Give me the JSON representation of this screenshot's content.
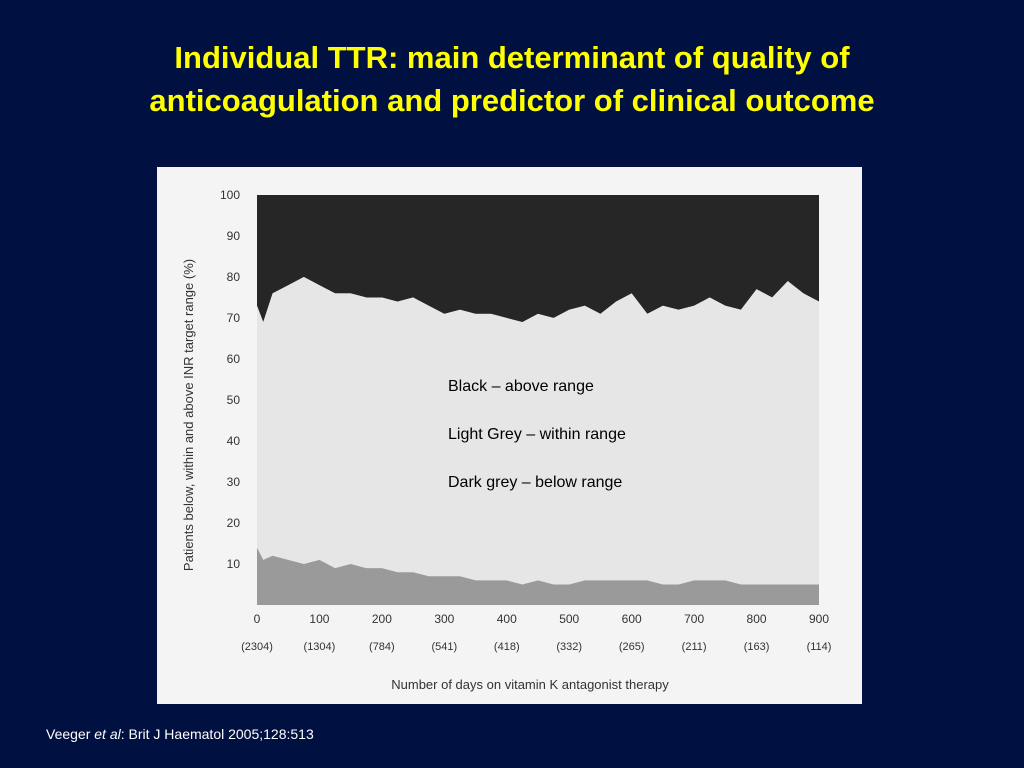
{
  "slide": {
    "title_line1": "Individual TTR: main determinant of quality of",
    "title_line2": "anticoagulation and predictor of clinical outcome",
    "citation_author": "Veeger ",
    "citation_etal": "et al",
    "citation_rest": ":  Brit J Haematol 2005;128:513",
    "colors": {
      "background": "#001040",
      "title": "#ffff00",
      "citation": "#ffffff",
      "above_range": "#262626",
      "within_range": "#e6e6e6",
      "below_range": "#9a9a9a"
    }
  },
  "notes": {
    "black": "Black –  above range",
    "light": "Light Grey – within range",
    "dark": "Dark grey – below range"
  },
  "chart_data": {
    "type": "area",
    "stacked": true,
    "xlabel": "Number of days on vitamin K antagonist therapy",
    "ylabel": "Patients below, within and above INR target range (%)",
    "xlim": [
      0,
      900
    ],
    "ylim": [
      0,
      100
    ],
    "x_ticks": [
      "0",
      "100",
      "200",
      "300",
      "400",
      "500",
      "600",
      "700",
      "800",
      "900"
    ],
    "x_sublabels": [
      "(2304)",
      "(1304)",
      "(784)",
      "(541)",
      "(418)",
      "(332)",
      "(265)",
      "(211)",
      "(163)",
      "(114)"
    ],
    "y_ticks": [
      "10",
      "20",
      "30",
      "40",
      "50",
      "60",
      "70",
      "80",
      "90",
      "100"
    ],
    "x": [
      0,
      10,
      25,
      50,
      75,
      100,
      125,
      150,
      175,
      200,
      225,
      250,
      275,
      300,
      325,
      350,
      375,
      400,
      425,
      450,
      475,
      500,
      525,
      550,
      575,
      600,
      625,
      650,
      675,
      700,
      725,
      750,
      775,
      800,
      825,
      850,
      875,
      900
    ],
    "below_range": [
      14,
      11,
      12,
      11,
      10,
      11,
      9,
      10,
      9,
      9,
      8,
      8,
      7,
      7,
      7,
      6,
      6,
      6,
      5,
      6,
      5,
      5,
      6,
      6,
      6,
      6,
      6,
      5,
      5,
      6,
      6,
      6,
      5,
      5,
      5,
      5,
      5,
      5
    ],
    "upper_boundary": [
      73,
      69,
      76,
      78,
      80,
      78,
      76,
      76,
      75,
      75,
      74,
      75,
      73,
      71,
      72,
      71,
      71,
      70,
      69,
      71,
      70,
      72,
      73,
      71,
      74,
      76,
      71,
      73,
      72,
      73,
      75,
      73,
      72,
      77,
      75,
      79,
      76,
      74
    ]
  }
}
